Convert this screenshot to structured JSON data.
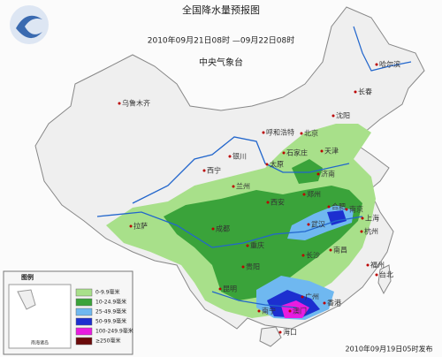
{
  "header": {
    "title": "全国降水量预报图",
    "period": "2010年09月21日08时 —09月22日08时",
    "issuer": "中央气象台"
  },
  "legend": {
    "title": "图例",
    "items": [
      {
        "label": "0-9.9毫米",
        "color": "#a8e08a"
      },
      {
        "label": "10-24.9毫米",
        "color": "#3aa33a"
      },
      {
        "label": "25-49.9毫米",
        "color": "#6fb8f0"
      },
      {
        "label": "50-99.9毫米",
        "color": "#1c2fd0"
      },
      {
        "label": "100-249.9毫米",
        "color": "#e81ce0"
      },
      {
        "label": "≥250毫米",
        "color": "#6a0a0a"
      }
    ],
    "inset": "南海诸岛"
  },
  "cities": [
    "哈尔滨",
    "长春",
    "沈阳",
    "乌鲁木齐",
    "呼和浩特",
    "北京",
    "天津",
    "石家庄",
    "太原",
    "济南",
    "银川",
    "西宁",
    "兰州",
    "郑州",
    "西安",
    "合肥",
    "南京",
    "上海",
    "武汉",
    "杭州",
    "拉萨",
    "成都",
    "重庆",
    "长沙",
    "南昌",
    "贵阳",
    "昆明",
    "福州",
    "台北",
    "南宁",
    "广州",
    "香港",
    "澳门",
    "海口"
  ],
  "footer": "2010年09月19日05时发布"
}
